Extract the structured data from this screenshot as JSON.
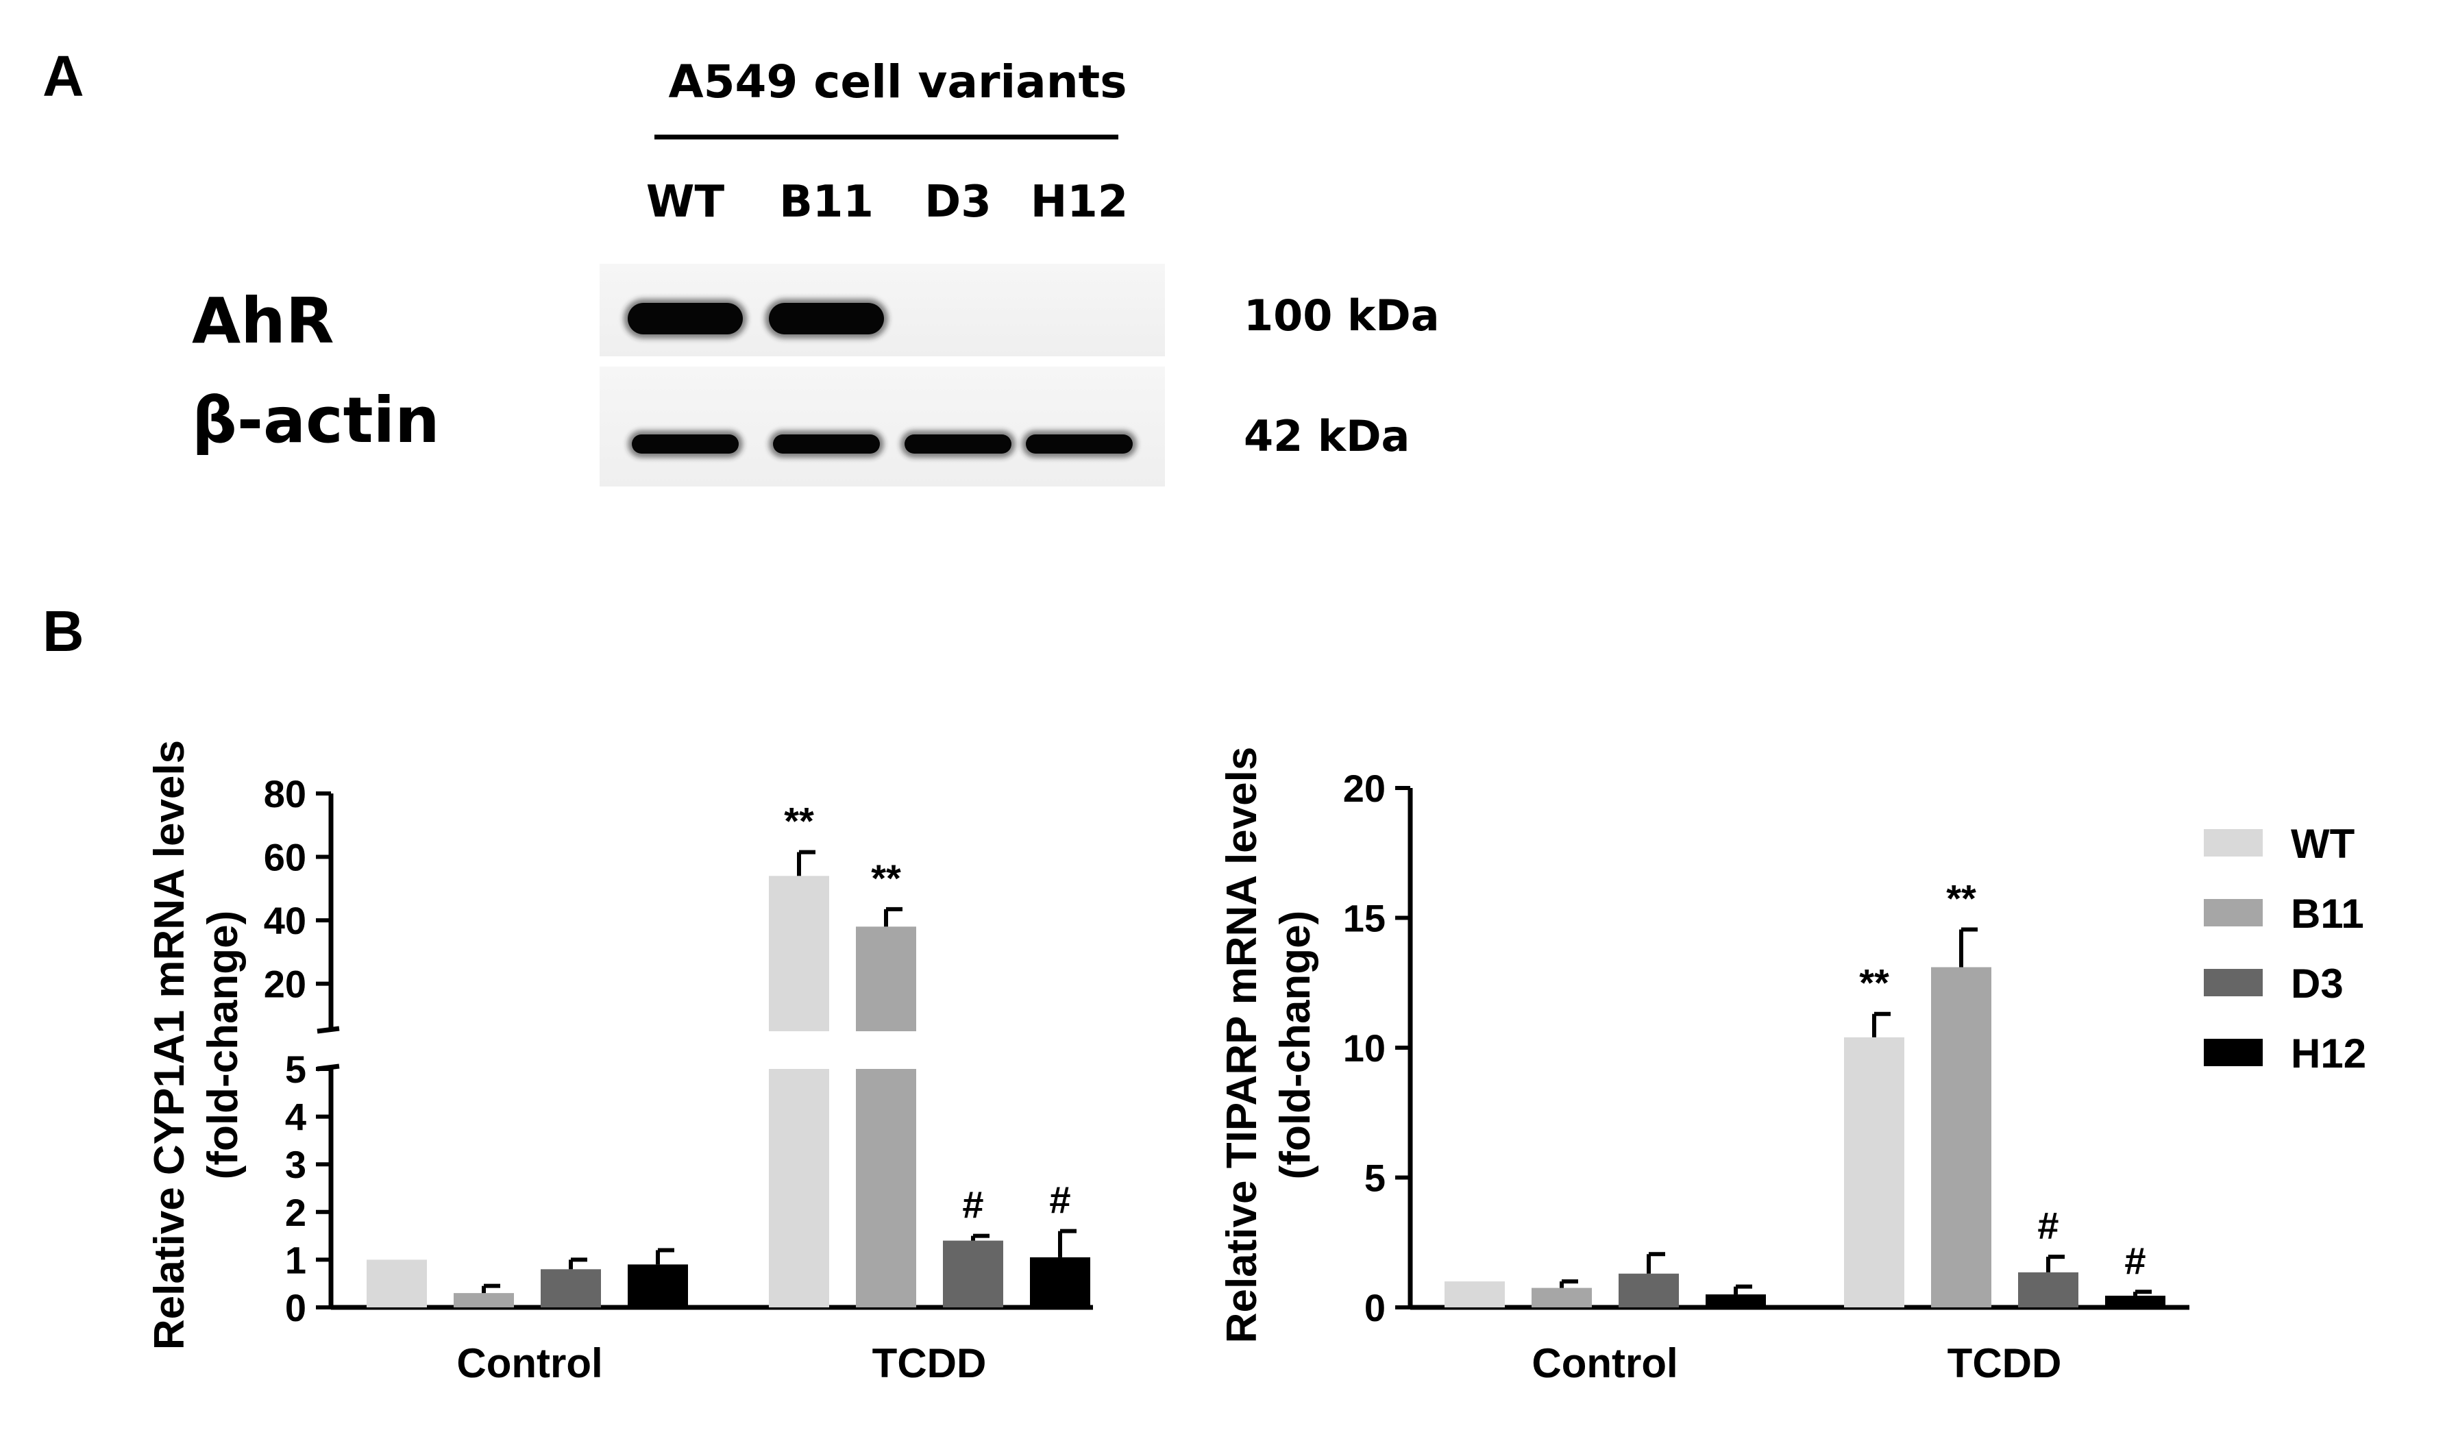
{
  "panel_a": {
    "letter": "A",
    "header": "A549 cell variants",
    "lanes": [
      "WT",
      "B11",
      "D3",
      "H12"
    ],
    "rows": [
      {
        "label": "AhR",
        "size": "100 kDa",
        "band_present": [
          true,
          true,
          false,
          false
        ]
      },
      {
        "label": "β-actin",
        "size": "42 kDa",
        "band_present": [
          true,
          true,
          true,
          true
        ]
      }
    ]
  },
  "panel_b": {
    "letter": "B"
  },
  "colors": {
    "WT": "#d9d9d9",
    "B11": "#a6a6a6",
    "D3": "#666666",
    "H12": "#000000",
    "axis": "#000000"
  },
  "legend": {
    "position": "right",
    "items": [
      "WT",
      "B11",
      "D3",
      "H12"
    ]
  },
  "chart_data": [
    {
      "type": "bar",
      "categories": [
        "Control",
        "TCDD"
      ],
      "ylabel": [
        "Relative CYP1A1 mRNA levels",
        "(fold-change)"
      ],
      "broken_axis": true,
      "lower_ylim": [
        0,
        5
      ],
      "lower_ticks": [
        0,
        1,
        2,
        3,
        4,
        5
      ],
      "upper_ylim": [
        5,
        80
      ],
      "upper_ticks": [
        20,
        40,
        60,
        80
      ],
      "series": [
        {
          "name": "WT",
          "values": [
            1.0,
            54
          ],
          "errors": [
            0,
            7.5
          ],
          "annotations": [
            "",
            "**"
          ]
        },
        {
          "name": "B11",
          "values": [
            0.3,
            38
          ],
          "errors": [
            0.15,
            5.5
          ],
          "annotations": [
            "",
            "**"
          ]
        },
        {
          "name": "D3",
          "values": [
            0.8,
            1.4
          ],
          "errors": [
            0.2,
            0.1
          ],
          "annotations": [
            "",
            "#"
          ]
        },
        {
          "name": "H12",
          "values": [
            0.9,
            1.05
          ],
          "errors": [
            0.3,
            0.55
          ],
          "annotations": [
            "",
            "#"
          ]
        }
      ]
    },
    {
      "type": "bar",
      "categories": [
        "Control",
        "TCDD"
      ],
      "ylabel": [
        "Relative TIPARP mRNA levels",
        "(fold-change)"
      ],
      "ylim": [
        0,
        20
      ],
      "yticks": [
        0,
        5,
        10,
        15,
        20
      ],
      "series": [
        {
          "name": "WT",
          "values": [
            1.0,
            10.4
          ],
          "errors": [
            0,
            0.9
          ],
          "annotations": [
            "",
            "**"
          ]
        },
        {
          "name": "B11",
          "values": [
            0.75,
            13.1
          ],
          "errors": [
            0.25,
            1.45
          ],
          "annotations": [
            "",
            "**"
          ]
        },
        {
          "name": "D3",
          "values": [
            1.3,
            1.35
          ],
          "errors": [
            0.75,
            0.6
          ],
          "annotations": [
            "",
            "#"
          ]
        },
        {
          "name": "H12",
          "values": [
            0.5,
            0.45
          ],
          "errors": [
            0.3,
            0.15
          ],
          "annotations": [
            "",
            "#"
          ]
        }
      ]
    }
  ]
}
